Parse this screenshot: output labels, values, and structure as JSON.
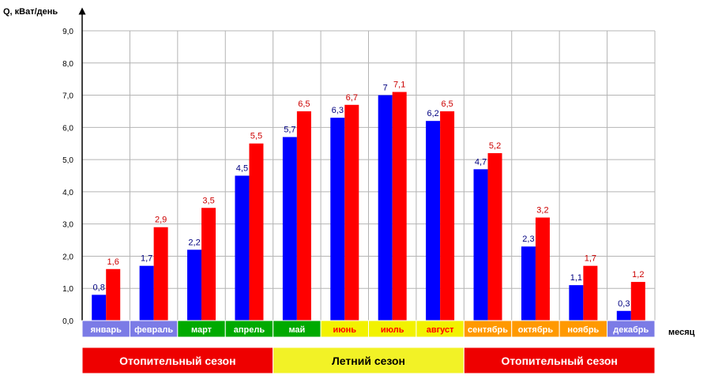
{
  "chart_data": {
    "type": "bar",
    "ylabel": "Q, кВат/день",
    "xlabel": "месяц",
    "ylim": [
      0,
      9
    ],
    "yticks": [
      "0,0",
      "1,0",
      "2,0",
      "3,0",
      "4,0",
      "5,0",
      "6,0",
      "7,0",
      "8,0",
      "9,0"
    ],
    "grid": true,
    "categories": [
      "январь",
      "февраль",
      "март",
      "апрель",
      "май",
      "июнь",
      "июль",
      "август",
      "сентябрь",
      "октябрь",
      "ноябрь",
      "декабрь"
    ],
    "category_colors": [
      "#7b7be6",
      "#7b7be6",
      "#00aa00",
      "#00aa00",
      "#00aa00",
      "#f2f200",
      "#f2f200",
      "#f2f200",
      "#ff9900",
      "#ff9900",
      "#ff9900",
      "#7b7be6"
    ],
    "category_text_colors": [
      "#ffffff",
      "#ffffff",
      "#ffffff",
      "#ffffff",
      "#ffffff",
      "#ff0000",
      "#ff0000",
      "#ff0000",
      "#ffffff",
      "#ffffff",
      "#ffffff",
      "#ffffff"
    ],
    "series": [
      {
        "color": "#0000ff",
        "label_color": "#000080",
        "values": [
          0.8,
          1.7,
          2.2,
          4.5,
          5.7,
          6.3,
          7.0,
          6.2,
          4.7,
          2.3,
          1.1,
          0.3
        ],
        "labels": [
          "0,8",
          "1,7",
          "2,2",
          "4,5",
          "5,7",
          "6,3",
          "7",
          "6,2",
          "4,7",
          "2,3",
          "1,1",
          "0,3"
        ]
      },
      {
        "color": "#ff0000",
        "label_color": "#cc0000",
        "values": [
          1.6,
          2.9,
          3.5,
          5.5,
          6.5,
          6.7,
          7.1,
          6.5,
          5.2,
          3.2,
          1.7,
          1.2
        ],
        "labels": [
          "1,6",
          "2,9",
          "3,5",
          "5,5",
          "6,5",
          "6,7",
          "7,1",
          "6,5",
          "5,2",
          "3,2",
          "1,7",
          "1,2"
        ]
      }
    ],
    "seasons": [
      {
        "label": "Отопительный сезон",
        "start": 0,
        "end": 4,
        "color": "#ee0000",
        "text_color": "#ffffff"
      },
      {
        "label": "Летний сезон",
        "start": 4,
        "end": 8,
        "color": "#f2f226",
        "text_color": "#000000"
      },
      {
        "label": "Отопительный сезон",
        "start": 8,
        "end": 12,
        "color": "#ee0000",
        "text_color": "#ffffff"
      }
    ]
  }
}
